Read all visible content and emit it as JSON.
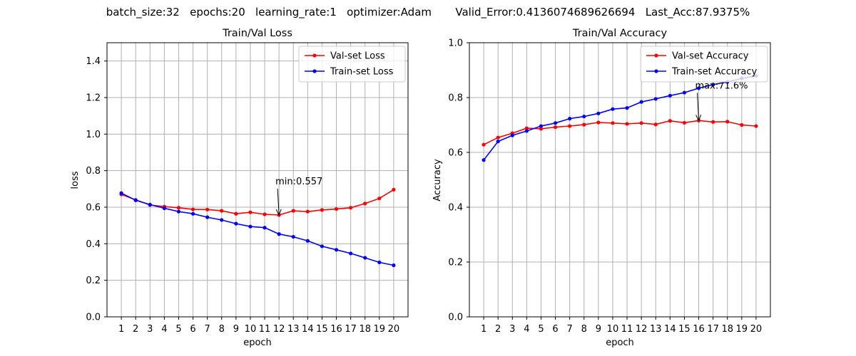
{
  "suptitle": "batch_size:32   epochs:20   learning_rate:1   optimizer:Adam       Valid_Error:0.4136074689626694   Last_Acc:87.9375%",
  "chart_data": [
    {
      "type": "line",
      "title": "Train/Val Loss",
      "xlabel": "epoch",
      "ylabel": "loss",
      "xlim": [
        0,
        21
      ],
      "ylim": [
        0,
        1.5
      ],
      "x": [
        1,
        2,
        3,
        4,
        5,
        6,
        7,
        8,
        9,
        10,
        11,
        12,
        13,
        14,
        15,
        16,
        17,
        18,
        19,
        20
      ],
      "xticks": [
        1,
        2,
        3,
        4,
        5,
        6,
        7,
        8,
        9,
        10,
        11,
        12,
        13,
        14,
        15,
        16,
        17,
        18,
        19,
        20
      ],
      "yticks": [
        0.0,
        0.2,
        0.4,
        0.6,
        0.8,
        1.0,
        1.2,
        1.4
      ],
      "ytick_labels": [
        "0.0",
        "0.2",
        "0.4",
        "0.6",
        "0.8",
        "1.0",
        "1.2",
        "1.4"
      ],
      "grid": true,
      "legend_position": "upper right",
      "series": [
        {
          "name": "Val-set Loss",
          "color": "#ff0000",
          "values": [
            0.67,
            0.64,
            0.612,
            0.603,
            0.597,
            0.588,
            0.587,
            0.58,
            0.564,
            0.572,
            0.561,
            0.557,
            0.58,
            0.576,
            0.585,
            0.59,
            0.597,
            0.62,
            0.648,
            0.696
          ]
        },
        {
          "name": "Train-set Loss",
          "color": "#0000ff",
          "values": [
            0.677,
            0.638,
            0.614,
            0.594,
            0.576,
            0.564,
            0.545,
            0.53,
            0.51,
            0.494,
            0.488,
            0.453,
            0.438,
            0.416,
            0.386,
            0.367,
            0.347,
            0.323,
            0.298,
            0.282
          ]
        }
      ],
      "annotation": {
        "text": "min:0.557",
        "x": 12,
        "y": 0.557
      }
    },
    {
      "type": "line",
      "title": "Train/Val Accuracy",
      "xlabel": "epoch",
      "ylabel": "Accuracy",
      "xlim": [
        0,
        21
      ],
      "ylim": [
        0,
        1.0
      ],
      "x": [
        1,
        2,
        3,
        4,
        5,
        6,
        7,
        8,
        9,
        10,
        11,
        12,
        13,
        14,
        15,
        16,
        17,
        18,
        19,
        20
      ],
      "xticks": [
        1,
        2,
        3,
        4,
        5,
        6,
        7,
        8,
        9,
        10,
        11,
        12,
        13,
        14,
        15,
        16,
        17,
        18,
        19,
        20
      ],
      "yticks": [
        0.0,
        0.2,
        0.4,
        0.6,
        0.8,
        1.0
      ],
      "ytick_labels": [
        "0.0",
        "0.2",
        "0.4",
        "0.6",
        "0.8",
        "1.0"
      ],
      "grid": true,
      "legend_position": "upper right",
      "series": [
        {
          "name": "Val-set Accuracy",
          "color": "#ff0000",
          "values": [
            0.628,
            0.654,
            0.67,
            0.688,
            0.686,
            0.692,
            0.696,
            0.701,
            0.709,
            0.707,
            0.704,
            0.707,
            0.702,
            0.715,
            0.708,
            0.716,
            0.711,
            0.712,
            0.7,
            0.696
          ]
        },
        {
          "name": "Train-set Accuracy",
          "color": "#0000ff",
          "values": [
            0.572,
            0.64,
            0.662,
            0.678,
            0.696,
            0.707,
            0.723,
            0.731,
            0.742,
            0.758,
            0.762,
            0.784,
            0.795,
            0.807,
            0.818,
            0.834,
            0.847,
            0.857,
            0.87,
            0.879
          ]
        }
      ],
      "annotation": {
        "text": "max:71.6%",
        "x": 16,
        "y": 0.716
      }
    }
  ]
}
